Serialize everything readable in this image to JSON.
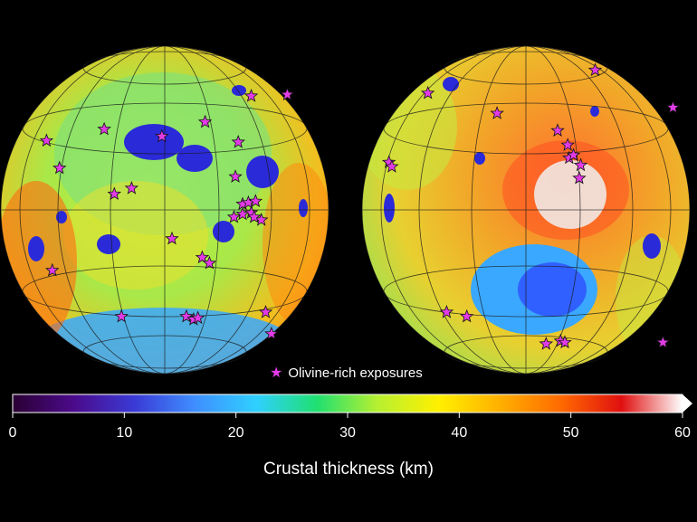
{
  "legend": {
    "marker_label": "Olivine-rich exposures",
    "marker_icon": "star-icon",
    "marker_color": "#e23be6"
  },
  "colorbar": {
    "title": "Crustal thickness (km)",
    "min": 0,
    "max": 60,
    "ticks": [
      "0",
      "10",
      "20",
      "30",
      "40",
      "50",
      "60"
    ],
    "palette": [
      "#2a0033",
      "#4b0a8a",
      "#3a3ad6",
      "#3f8fff",
      "#2fd0ff",
      "#20e070",
      "#b8f030",
      "#fff000",
      "#ffb000",
      "#ff6a00",
      "#e01010",
      "#ffffff"
    ]
  },
  "maps": [
    {
      "name": "nearside-hemisphere",
      "markers": [
        [
          -0.82,
          -0.48
        ],
        [
          -0.42,
          -0.56
        ],
        [
          -0.02,
          -0.51
        ],
        [
          0.28,
          -0.61
        ],
        [
          0.6,
          -0.79
        ],
        [
          0.85,
          -0.8
        ],
        [
          -0.73,
          -0.29
        ],
        [
          -0.23,
          -0.15
        ],
        [
          0.51,
          -0.47
        ],
        [
          -0.35,
          -0.11
        ],
        [
          0.49,
          -0.23
        ],
        [
          0.54,
          -0.04
        ],
        [
          0.58,
          -0.05
        ],
        [
          0.63,
          -0.06
        ],
        [
          0.67,
          0.07
        ],
        [
          0.05,
          0.2
        ],
        [
          0.48,
          0.05
        ],
        [
          0.54,
          0.03
        ],
        [
          0.6,
          0.02
        ],
        [
          0.62,
          0.05
        ],
        [
          0.26,
          0.33
        ],
        [
          0.31,
          0.37
        ],
        [
          -0.78,
          0.42
        ],
        [
          0.7,
          0.71
        ],
        [
          0.74,
          0.86
        ],
        [
          -0.3,
          0.74
        ],
        [
          0.15,
          0.74
        ],
        [
          0.2,
          0.76
        ],
        [
          0.23,
          0.75
        ]
      ]
    },
    {
      "name": "farside-hemisphere",
      "markers": [
        [
          -0.95,
          -0.33
        ],
        [
          -0.93,
          -0.3
        ],
        [
          -0.68,
          -0.81
        ],
        [
          -0.2,
          -0.67
        ],
        [
          0.22,
          -0.55
        ],
        [
          0.29,
          -0.45
        ],
        [
          0.3,
          -0.36
        ],
        [
          0.33,
          -0.38
        ],
        [
          0.37,
          -0.22
        ],
        [
          0.38,
          -0.31
        ],
        [
          1.02,
          -0.71
        ],
        [
          0.48,
          -0.97
        ],
        [
          -0.55,
          0.71
        ],
        [
          -0.41,
          0.74
        ],
        [
          0.14,
          0.93
        ],
        [
          0.24,
          0.91
        ],
        [
          0.27,
          0.92
        ],
        [
          0.95,
          0.92
        ]
      ]
    }
  ]
}
